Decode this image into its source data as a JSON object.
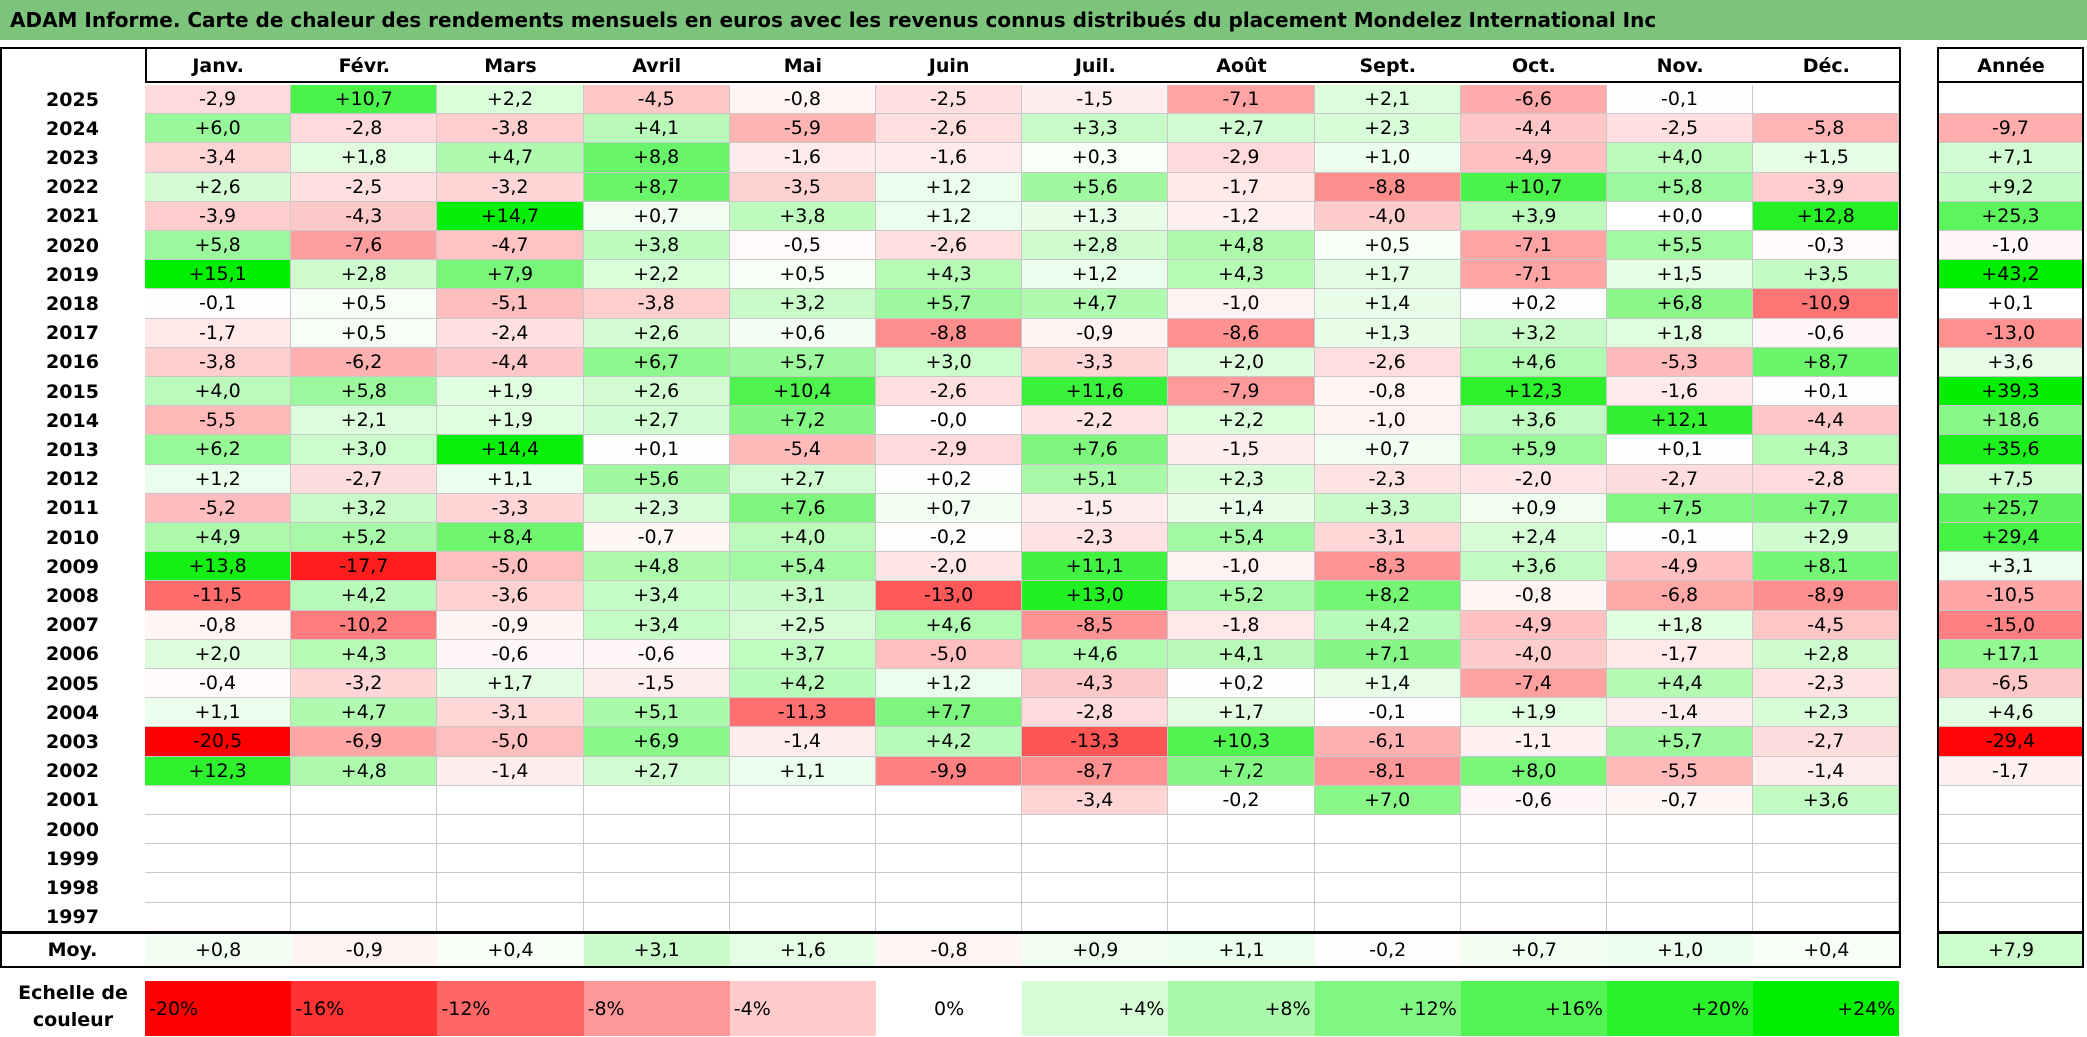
{
  "title": "ADAM Informe. Carte de chaleur des rendements mensuels en euros avec les revenus connus distribués du placement Mondelez International Inc",
  "chart_data": {
    "type": "heatmap",
    "columns": [
      "Janv.",
      "Févr.",
      "Mars",
      "Avril",
      "Mai",
      "Juin",
      "Juil.",
      "Août",
      "Sept.",
      "Oct.",
      "Nov.",
      "Déc."
    ],
    "year_header": "Année",
    "rows": [
      {
        "year": "2025",
        "months": [
          "-2,9",
          "+10,7",
          "+2,2",
          "-4,5",
          "-0,8",
          "-2,5",
          "-1,5",
          "-7,1",
          "+2,1",
          "-6,6",
          "-0,1",
          ""
        ],
        "annual": ""
      },
      {
        "year": "2024",
        "months": [
          "+6,0",
          "-2,8",
          "-3,8",
          "+4,1",
          "-5,9",
          "-2,6",
          "+3,3",
          "+2,7",
          "+2,3",
          "-4,4",
          "-2,5",
          "-5,8"
        ],
        "annual": "-9,7"
      },
      {
        "year": "2023",
        "months": [
          "-3,4",
          "+1,8",
          "+4,7",
          "+8,8",
          "-1,6",
          "-1,6",
          "+0,3",
          "-2,9",
          "+1,0",
          "-4,9",
          "+4,0",
          "+1,5"
        ],
        "annual": "+7,1"
      },
      {
        "year": "2022",
        "months": [
          "+2,6",
          "-2,5",
          "-3,2",
          "+8,7",
          "-3,5",
          "+1,2",
          "+5,6",
          "-1,7",
          "-8,8",
          "+10,7",
          "+5,8",
          "-3,9"
        ],
        "annual": "+9,2"
      },
      {
        "year": "2021",
        "months": [
          "-3,9",
          "-4,3",
          "+14,7",
          "+0,7",
          "+3,8",
          "+1,2",
          "+1,3",
          "-1,2",
          "-4,0",
          "+3,9",
          "+0,0",
          "+12,8"
        ],
        "annual": "+25,3"
      },
      {
        "year": "2020",
        "months": [
          "+5,8",
          "-7,6",
          "-4,7",
          "+3,8",
          "-0,5",
          "-2,6",
          "+2,8",
          "+4,8",
          "+0,5",
          "-7,1",
          "+5,5",
          "-0,3"
        ],
        "annual": "-1,0"
      },
      {
        "year": "2019",
        "months": [
          "+15,1",
          "+2,8",
          "+7,9",
          "+2,2",
          "+0,5",
          "+4,3",
          "+1,2",
          "+4,3",
          "+1,7",
          "-7,1",
          "+1,5",
          "+3,5"
        ],
        "annual": "+43,2"
      },
      {
        "year": "2018",
        "months": [
          "-0,1",
          "+0,5",
          "-5,1",
          "-3,8",
          "+3,2",
          "+5,7",
          "+4,7",
          "-1,0",
          "+1,4",
          "+0,2",
          "+6,8",
          "-10,9"
        ],
        "annual": "+0,1"
      },
      {
        "year": "2017",
        "months": [
          "-1,7",
          "+0,5",
          "-2,4",
          "+2,6",
          "+0,6",
          "-8,8",
          "-0,9",
          "-8,6",
          "+1,3",
          "+3,2",
          "+1,8",
          "-0,6"
        ],
        "annual": "-13,0"
      },
      {
        "year": "2016",
        "months": [
          "-3,8",
          "-6,2",
          "-4,4",
          "+6,7",
          "+5,7",
          "+3,0",
          "-3,3",
          "+2,0",
          "-2,6",
          "+4,6",
          "-5,3",
          "+8,7"
        ],
        "annual": "+3,6"
      },
      {
        "year": "2015",
        "months": [
          "+4,0",
          "+5,8",
          "+1,9",
          "+2,6",
          "+10,4",
          "-2,6",
          "+11,6",
          "-7,9",
          "-0,8",
          "+12,3",
          "-1,6",
          "+0,1"
        ],
        "annual": "+39,3"
      },
      {
        "year": "2014",
        "months": [
          "-5,5",
          "+2,1",
          "+1,9",
          "+2,7",
          "+7,2",
          "-0,0",
          "-2,2",
          "+2,2",
          "-1,0",
          "+3,6",
          "+12,1",
          "-4,4"
        ],
        "annual": "+18,6"
      },
      {
        "year": "2013",
        "months": [
          "+6,2",
          "+3,0",
          "+14,4",
          "+0,1",
          "-5,4",
          "-2,9",
          "+7,6",
          "-1,5",
          "+0,7",
          "+5,9",
          "+0,1",
          "+4,3"
        ],
        "annual": "+35,6"
      },
      {
        "year": "2012",
        "months": [
          "+1,2",
          "-2,7",
          "+1,1",
          "+5,6",
          "+2,7",
          "+0,2",
          "+5,1",
          "+2,3",
          "-2,3",
          "-2,0",
          "-2,7",
          "-2,8"
        ],
        "annual": "+7,5"
      },
      {
        "year": "2011",
        "months": [
          "-5,2",
          "+3,2",
          "-3,3",
          "+2,3",
          "+7,6",
          "+0,7",
          "-1,5",
          "+1,4",
          "+3,3",
          "+0,9",
          "+7,5",
          "+7,7"
        ],
        "annual": "+25,7"
      },
      {
        "year": "2010",
        "months": [
          "+4,9",
          "+5,2",
          "+8,4",
          "-0,7",
          "+4,0",
          "-0,2",
          "-2,3",
          "+5,4",
          "-3,1",
          "+2,4",
          "-0,1",
          "+2,9"
        ],
        "annual": "+29,4"
      },
      {
        "year": "2009",
        "months": [
          "+13,8",
          "-17,7",
          "-5,0",
          "+4,8",
          "+5,4",
          "-2,0",
          "+11,1",
          "-1,0",
          "-8,3",
          "+3,6",
          "-4,9",
          "+8,1"
        ],
        "annual": "+3,1"
      },
      {
        "year": "2008",
        "months": [
          "-11,5",
          "+4,2",
          "-3,6",
          "+3,4",
          "+3,1",
          "-13,0",
          "+13,0",
          "+5,2",
          "+8,2",
          "-0,8",
          "-6,8",
          "-8,9"
        ],
        "annual": "-10,5"
      },
      {
        "year": "2007",
        "months": [
          "-0,8",
          "-10,2",
          "-0,9",
          "+3,4",
          "+2,5",
          "+4,6",
          "-8,5",
          "-1,8",
          "+4,2",
          "-4,9",
          "+1,8",
          "-4,5"
        ],
        "annual": "-15,0"
      },
      {
        "year": "2006",
        "months": [
          "+2,0",
          "+4,3",
          "-0,6",
          "-0,6",
          "+3,7",
          "-5,0",
          "+4,6",
          "+4,1",
          "+7,1",
          "-4,0",
          "-1,7",
          "+2,8"
        ],
        "annual": "+17,1"
      },
      {
        "year": "2005",
        "months": [
          "-0,4",
          "-3,2",
          "+1,7",
          "-1,5",
          "+4,2",
          "+1,2",
          "-4,3",
          "+0,2",
          "+1,4",
          "-7,4",
          "+4,4",
          "-2,3"
        ],
        "annual": "-6,5"
      },
      {
        "year": "2004",
        "months": [
          "+1,1",
          "+4,7",
          "-3,1",
          "+5,1",
          "-11,3",
          "+7,7",
          "-2,8",
          "+1,7",
          "-0,1",
          "+1,9",
          "-1,4",
          "+2,3"
        ],
        "annual": "+4,6"
      },
      {
        "year": "2003",
        "months": [
          "-20,5",
          "-6,9",
          "-5,0",
          "+6,9",
          "-1,4",
          "+4,2",
          "-13,3",
          "+10,3",
          "-6,1",
          "-1,1",
          "+5,7",
          "-2,7"
        ],
        "annual": "-29,4"
      },
      {
        "year": "2002",
        "months": [
          "+12,3",
          "+4,8",
          "-1,4",
          "+2,7",
          "+1,1",
          "-9,9",
          "-8,7",
          "+7,2",
          "-8,1",
          "+8,0",
          "-5,5",
          "-1,4"
        ],
        "annual": "-1,7"
      },
      {
        "year": "2001",
        "months": [
          "",
          "",
          "",
          "",
          "",
          "",
          "-3,4",
          "-0,2",
          "+7,0",
          "-0,6",
          "-0,7",
          "+3,6"
        ],
        "annual": ""
      },
      {
        "year": "2000",
        "months": [
          "",
          "",
          "",
          "",
          "",
          "",
          "",
          "",
          "",
          "",
          "",
          ""
        ],
        "annual": ""
      },
      {
        "year": "1999",
        "months": [
          "",
          "",
          "",
          "",
          "",
          "",
          "",
          "",
          "",
          "",
          "",
          ""
        ],
        "annual": ""
      },
      {
        "year": "1998",
        "months": [
          "",
          "",
          "",
          "",
          "",
          "",
          "",
          "",
          "",
          "",
          "",
          ""
        ],
        "annual": ""
      },
      {
        "year": "1997",
        "months": [
          "",
          "",
          "",
          "",
          "",
          "",
          "",
          "",
          "",
          "",
          "",
          ""
        ],
        "annual": ""
      }
    ],
    "average": {
      "label": "Moy.",
      "months": [
        "+0,8",
        "-0,9",
        "+0,4",
        "+3,1",
        "+1,6",
        "-0,8",
        "+0,9",
        "+1,1",
        "-0,2",
        "+0,7",
        "+1,0",
        "+0,4"
      ],
      "annual": "+7,9"
    },
    "scale": {
      "label": "Echelle de couleur",
      "steps": [
        {
          "text": "-20%",
          "value": -20
        },
        {
          "text": "-16%",
          "value": -16
        },
        {
          "text": "-12%",
          "value": -12
        },
        {
          "text": "-8%",
          "value": -8
        },
        {
          "text": "-4%",
          "value": -4
        },
        {
          "text": "0%",
          "value": 0
        },
        {
          "text": "+4%",
          "value": 4
        },
        {
          "text": "+8%",
          "value": 8
        },
        {
          "text": "+12%",
          "value": 12
        },
        {
          "text": "+16%",
          "value": 16
        },
        {
          "text": "+20%",
          "value": 20
        },
        {
          "text": "+24%",
          "value": 24
        }
      ]
    },
    "colors": {
      "negative_max": "#ff0000",
      "zero": "#ffffff",
      "positive_max": "#00ee00",
      "title_background": "#7cc47c"
    }
  }
}
